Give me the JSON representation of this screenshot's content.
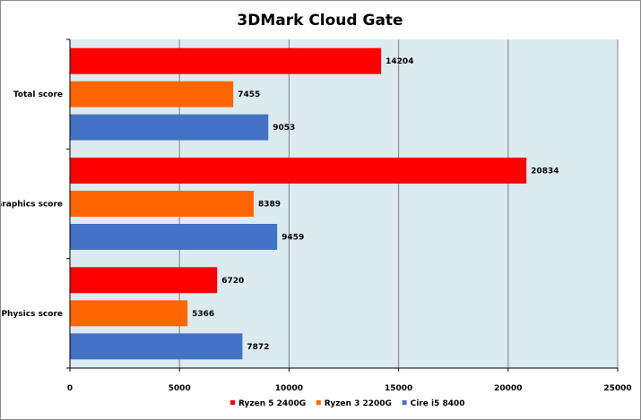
{
  "chart_data": {
    "type": "bar",
    "orientation": "horizontal",
    "title": "3DMark Cloud Gate",
    "categories": [
      "Total score",
      "Graphics score",
      "Physics score"
    ],
    "series": [
      {
        "name": "Ryzen 5 2400G",
        "color": "#ff0000",
        "values": [
          14204,
          20834,
          6720
        ]
      },
      {
        "name": "Ryzen 3 2200G",
        "color": "#ff6600",
        "values": [
          7455,
          8389,
          5366
        ]
      },
      {
        "name": "Cire i5 8400",
        "color": "#4472c4",
        "values": [
          9053,
          9459,
          7872
        ]
      }
    ],
    "xlim": [
      0,
      25000
    ],
    "xticks": [
      0,
      5000,
      10000,
      15000,
      20000,
      25000
    ],
    "grid": true,
    "plot_background": "#dcebf1",
    "legend_position": "bottom"
  }
}
